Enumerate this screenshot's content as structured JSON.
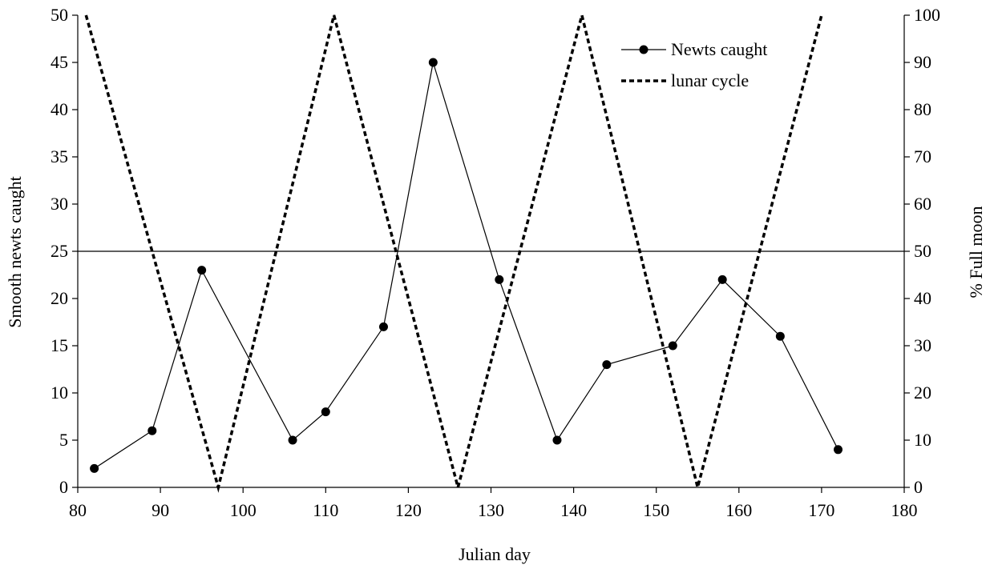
{
  "chart_data": {
    "type": "line",
    "xlabel": "Julian day",
    "ylabel_left": "Smooth newts caught",
    "ylabel_right": "% Full moon",
    "xlim": [
      80,
      180
    ],
    "ylim_left": [
      0,
      50
    ],
    "ylim_right": [
      0,
      100
    ],
    "x_ticks": [
      "80",
      "90",
      "100",
      "110",
      "120",
      "130",
      "140",
      "150",
      "160",
      "170",
      "180"
    ],
    "y_left_ticks": [
      "0",
      "5",
      "10",
      "15",
      "20",
      "25",
      "30",
      "35",
      "40",
      "45",
      "50"
    ],
    "y_right_ticks": [
      "0",
      "10",
      "20",
      "30",
      "40",
      "50",
      "60",
      "70",
      "80",
      "90",
      "100"
    ],
    "reference_line_right": 50,
    "legend_position": "top-right",
    "grid": false,
    "series": [
      {
        "name": "Newts caught",
        "axis": "left",
        "style": "solid-with-markers",
        "x": [
          82,
          89,
          95,
          106,
          110,
          117,
          123,
          131,
          138,
          144,
          152,
          158,
          165,
          172
        ],
        "y": [
          2,
          6,
          23,
          5,
          8,
          17,
          45,
          22,
          5,
          13,
          15,
          22,
          16,
          4
        ]
      },
      {
        "name": "lunar cycle",
        "axis": "right",
        "style": "dashed",
        "x": [
          81,
          97,
          111,
          126,
          141,
          155,
          170
        ],
        "y": [
          100,
          0,
          100,
          0,
          100,
          0,
          100
        ]
      }
    ]
  }
}
